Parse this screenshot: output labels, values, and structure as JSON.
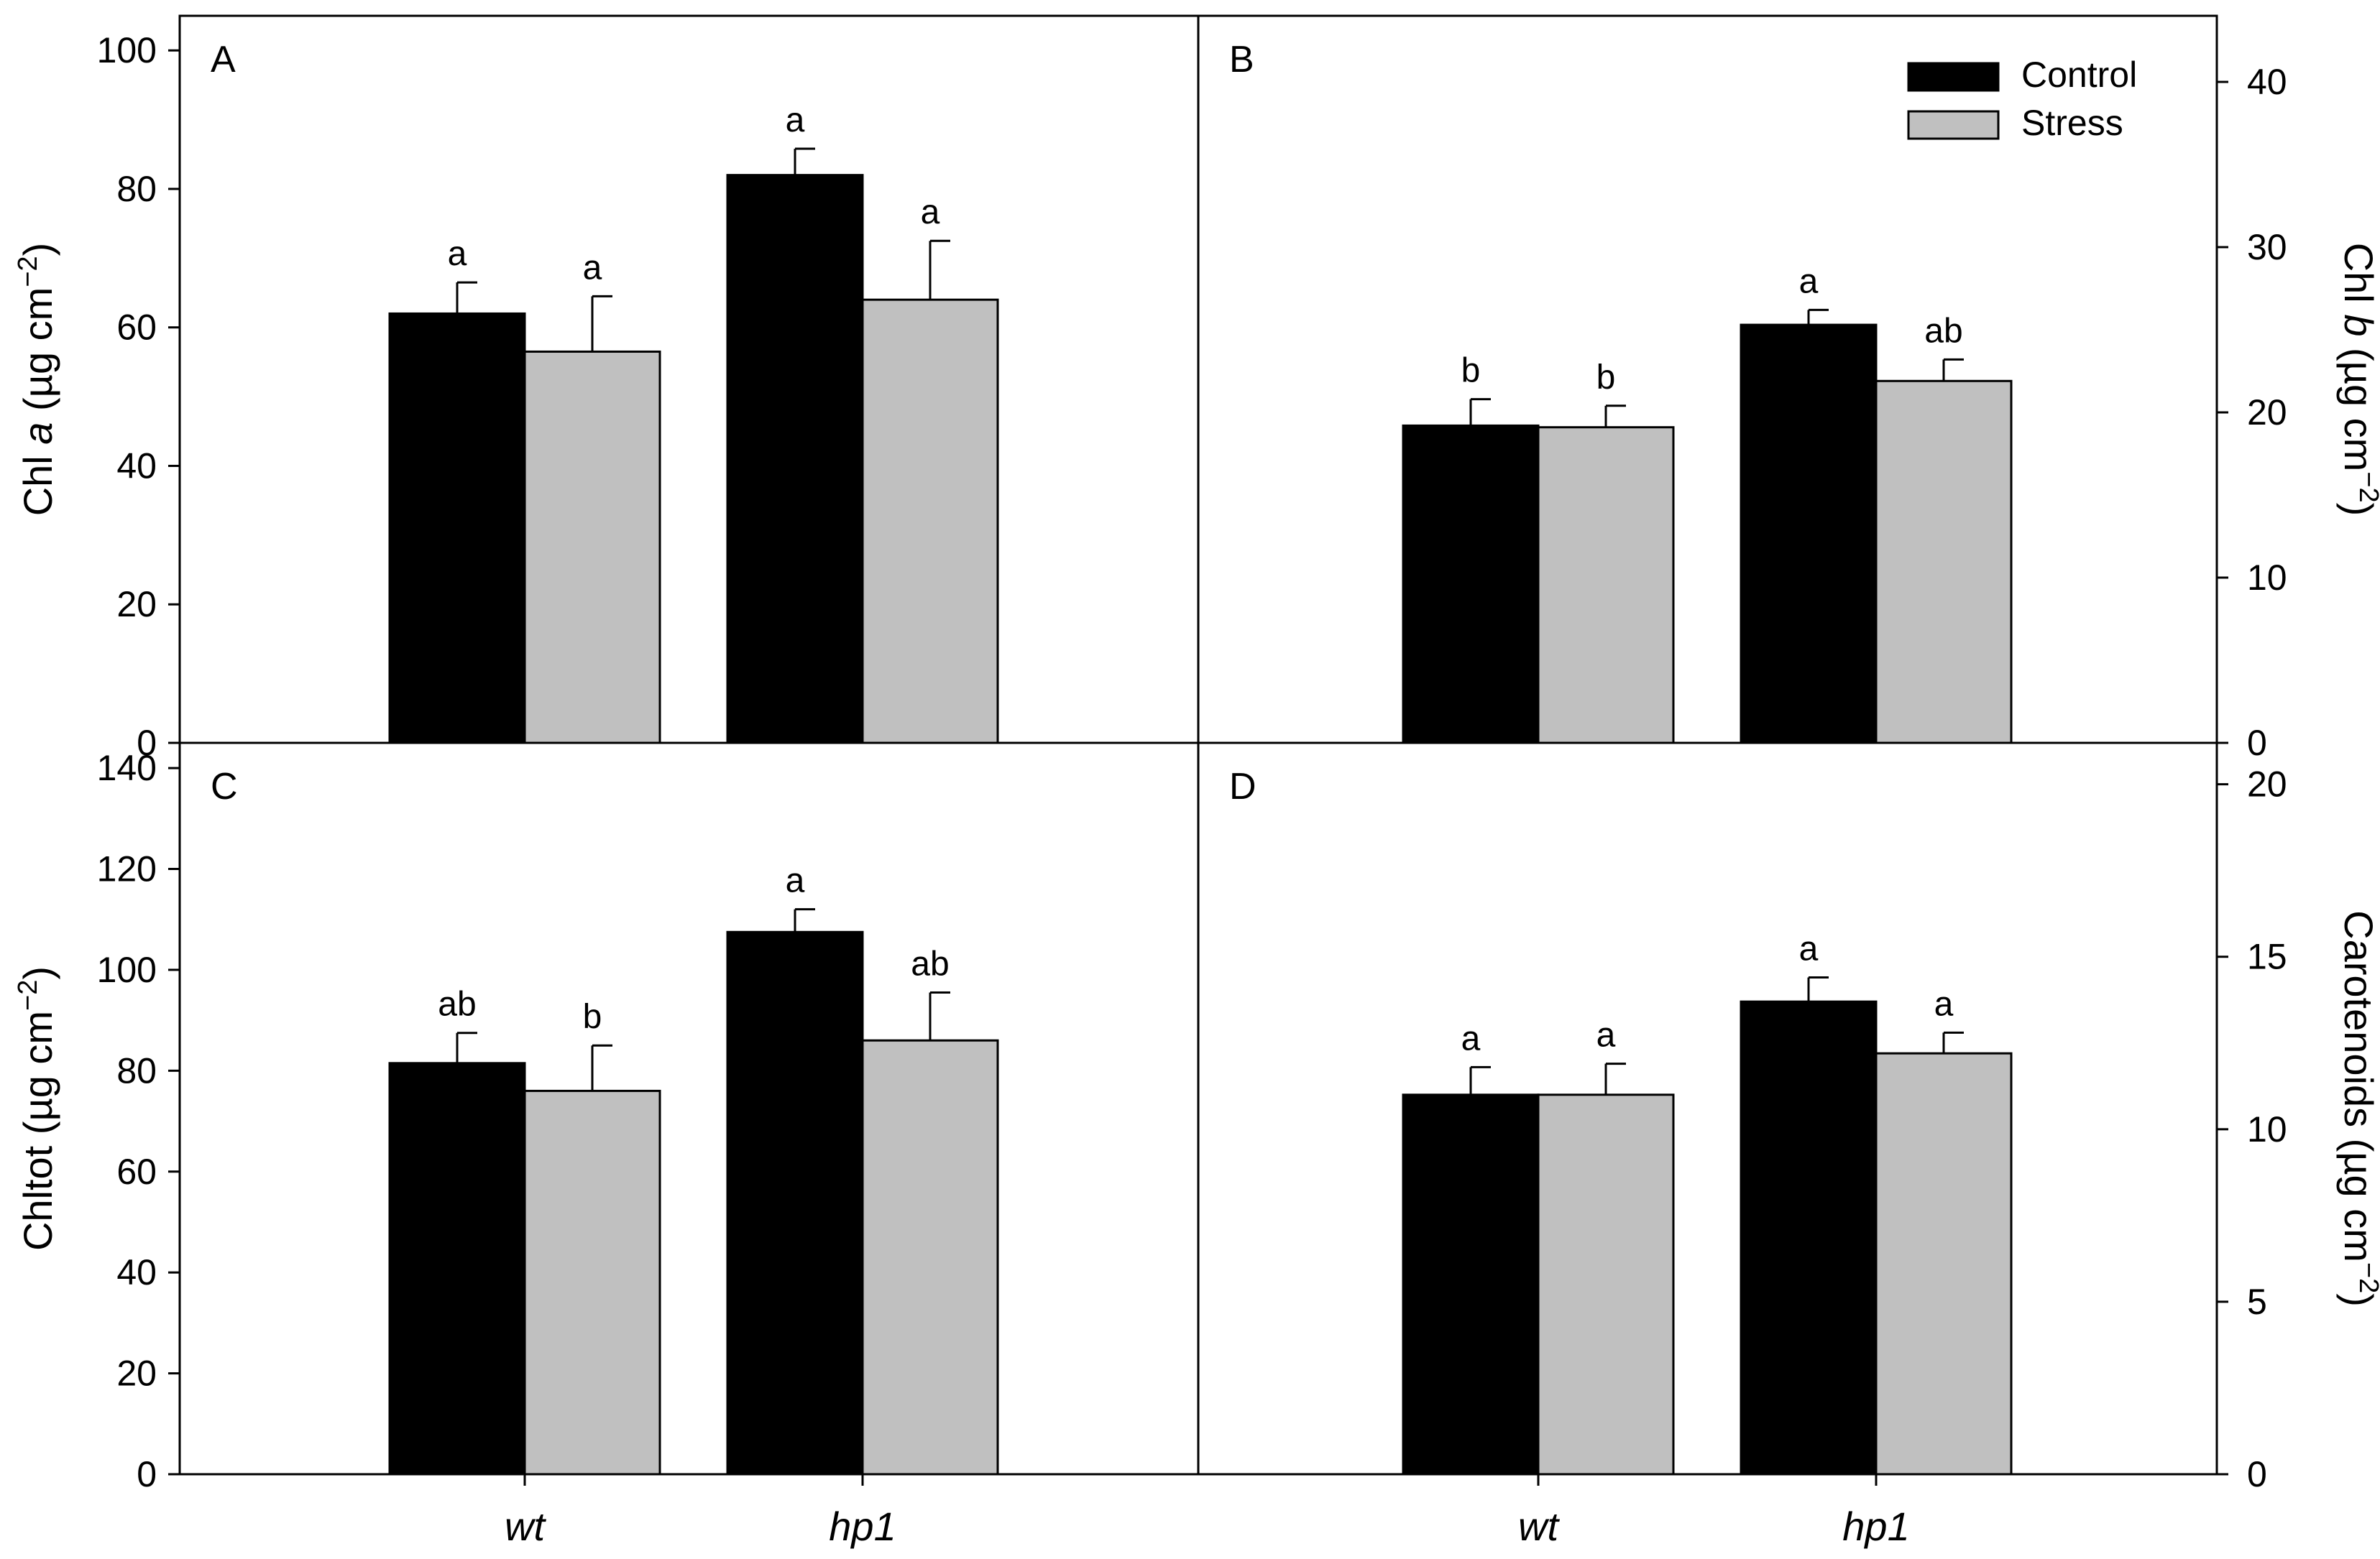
{
  "chart_data": {
    "type": "bar",
    "layout": "2x2 panels sharing x categories",
    "categories": [
      "wt",
      "hp1"
    ],
    "legend": {
      "entries": [
        {
          "name": "Control",
          "color": "#000000"
        },
        {
          "name": "Stress",
          "color": "#c0c0c0"
        }
      ],
      "placement": "top-right of panel B"
    },
    "panels": [
      {
        "id": "A",
        "ylabel_parts": [
          {
            "t": "Chl "
          },
          {
            "t": "a",
            "italic": true
          },
          {
            "t": " (µg cm"
          },
          {
            "t": "−2",
            "sup": true
          },
          {
            "t": ")"
          }
        ],
        "ylim": [
          0,
          105
        ],
        "yticks": [
          0,
          20,
          40,
          60,
          80,
          100
        ],
        "series": [
          {
            "name": "Control",
            "values": [
              62,
              82
            ],
            "errors": [
              4.5,
              3.8
            ],
            "letters": [
              "a",
              "a"
            ]
          },
          {
            "name": "Stress",
            "values": [
              56.5,
              64
            ],
            "errors": [
              8,
              8.5
            ],
            "letters": [
              "a",
              "a"
            ]
          }
        ]
      },
      {
        "id": "B",
        "ylabel_parts": [
          {
            "t": "Chl "
          },
          {
            "t": "b",
            "italic": true
          },
          {
            "t": " (µg cm"
          },
          {
            "t": "−2",
            "sup": true
          },
          {
            "t": ")"
          }
        ],
        "ylim": [
          0,
          44
        ],
        "yticks": [
          0,
          10,
          20,
          30,
          40
        ],
        "series": [
          {
            "name": "Control",
            "values": [
              19.2,
              25.3
            ],
            "errors": [
              1.6,
              0.9
            ],
            "letters": [
              "b",
              "a"
            ]
          },
          {
            "name": "Stress",
            "values": [
              19.1,
              21.9
            ],
            "errors": [
              1.3,
              1.3
            ],
            "letters": [
              "b",
              "ab"
            ]
          }
        ]
      },
      {
        "id": "C",
        "ylabel_parts": [
          {
            "t": "Chltot (µg cm"
          },
          {
            "t": "−2",
            "sup": true
          },
          {
            "t": ")"
          }
        ],
        "ylim": [
          0,
          145
        ],
        "yticks": [
          0,
          20,
          40,
          60,
          80,
          100,
          120,
          140
        ],
        "series": [
          {
            "name": "Control",
            "values": [
              81.5,
              107.5
            ],
            "errors": [
              6,
              4.5
            ],
            "letters": [
              "ab",
              "a"
            ]
          },
          {
            "name": "Stress",
            "values": [
              76,
              86
            ],
            "errors": [
              9,
              9.5
            ],
            "letters": [
              "b",
              "ab"
            ]
          }
        ]
      },
      {
        "id": "D",
        "ylabel_parts": [
          {
            "t": "Carotenoids (µg cm"
          },
          {
            "t": "−2",
            "sup": true
          },
          {
            "t": ")"
          }
        ],
        "ylim": [
          0,
          21.2
        ],
        "yticks": [
          0,
          5,
          10,
          15,
          20
        ],
        "series": [
          {
            "name": "Control",
            "values": [
              11.0,
              13.7
            ],
            "errors": [
              0.8,
              0.7
            ],
            "letters": [
              "a",
              "a"
            ]
          },
          {
            "name": "Stress",
            "values": [
              11.0,
              12.2
            ],
            "errors": [
              0.9,
              0.6
            ],
            "letters": [
              "a",
              "a"
            ]
          }
        ]
      }
    ]
  }
}
